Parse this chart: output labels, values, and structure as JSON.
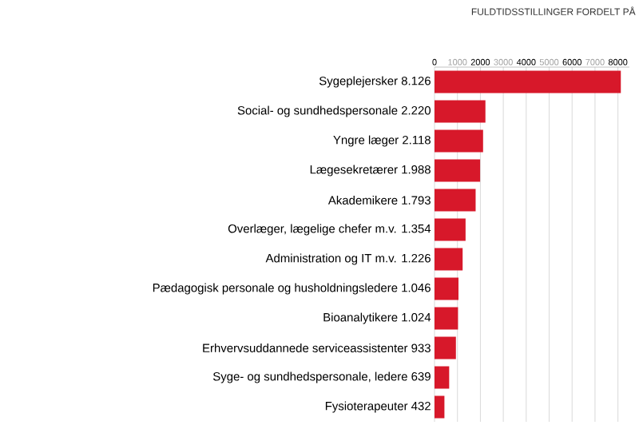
{
  "chart_data": {
    "type": "bar",
    "orientation": "horizontal",
    "title": "FULDTIDSSTILLINGER FORDELT PÅ",
    "categories": [
      "Sygeplejersker 8.126",
      "Social- og sundhedspersonale 2.220",
      "Yngre læger 2.118",
      "Lægesekretærer 1.988",
      "Akademikere 1.793",
      "Overlæger, lægelige chefer m.v. 1.354",
      "Administration og IT m.v. 1.226",
      "Pædagogisk personale og husholdningsledere 1.046",
      "Bioanalytikere 1.024",
      "Erhvervsuddannede serviceassistenter 933",
      "Syge- og sundhedspersonale, ledere 639",
      "Fysioterapeuter 432"
    ],
    "values": [
      8126,
      2220,
      2118,
      1988,
      1793,
      1354,
      1226,
      1046,
      1024,
      933,
      639,
      432
    ],
    "color": "#d7182a",
    "xlim": [
      0,
      8500
    ],
    "xticks": [
      0,
      1000,
      2000,
      3000,
      4000,
      5000,
      6000,
      7000,
      8000
    ],
    "grid": "x"
  }
}
